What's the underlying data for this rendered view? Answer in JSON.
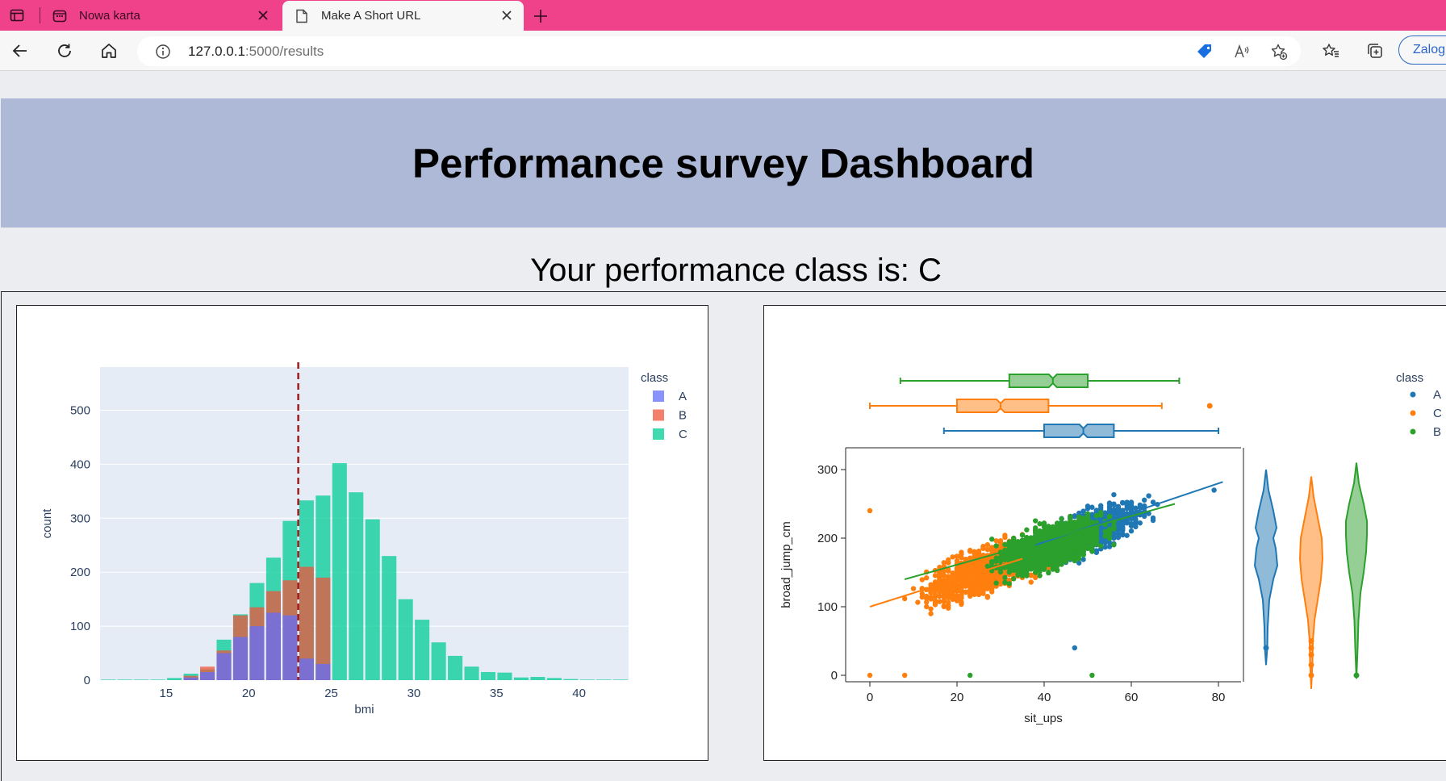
{
  "browser": {
    "tabs": [
      {
        "label": "Nowa karta"
      },
      {
        "label": "Make A Short URL"
      }
    ],
    "url_host": "127.0.0.1",
    "url_path": ":5000/results",
    "login_label": "Zalogu"
  },
  "page": {
    "title": "Performance survey Dashboard",
    "result_text": "Your performance class is: C"
  },
  "colors": {
    "tabstrip": "#f0428a",
    "banner": "#adb9d6",
    "histA": "#636efa",
    "histB": "#ef553b",
    "histC": "#00cc96",
    "scatterA": "#1f77b4",
    "scatterC": "#ff7f0e",
    "scatterB": "#2ca02c"
  },
  "chart_data": [
    {
      "type": "bar",
      "xlabel": "bmi",
      "ylabel": "count",
      "xlim": [
        11,
        43
      ],
      "ylim": [
        0,
        580
      ],
      "xticks": [
        15,
        20,
        25,
        30,
        35,
        40
      ],
      "yticks": [
        0,
        100,
        200,
        300,
        400,
        500
      ],
      "bin_width": 1,
      "legend_title": "class",
      "legend_position": "top-right",
      "reference_line_x": 23,
      "bins_left": [
        11,
        12,
        13,
        14,
        15,
        16,
        17,
        18,
        19,
        20,
        21,
        22,
        23,
        24,
        25,
        26,
        27,
        28,
        29,
        30,
        31,
        32,
        33,
        34,
        35,
        36,
        37,
        38,
        39,
        40,
        41,
        42
      ],
      "series": [
        {
          "name": "A",
          "values": [
            0,
            0,
            0,
            0,
            0,
            5,
            15,
            50,
            80,
            100,
            125,
            120,
            40,
            30,
            0,
            0,
            0,
            0,
            0,
            0,
            0,
            0,
            0,
            0,
            0,
            0,
            0,
            0,
            0,
            0,
            0,
            0
          ]
        },
        {
          "name": "B",
          "values": [
            0,
            0,
            0,
            0,
            0,
            8,
            25,
            55,
            120,
            135,
            165,
            185,
            210,
            190,
            0,
            0,
            0,
            0,
            0,
            0,
            0,
            0,
            0,
            0,
            0,
            0,
            0,
            0,
            0,
            0,
            0,
            0
          ]
        },
        {
          "name": "C",
          "values": [
            1,
            1,
            1,
            1,
            4,
            12,
            20,
            75,
            122,
            180,
            227,
            295,
            333,
            342,
            402,
            348,
            298,
            230,
            150,
            112,
            70,
            45,
            25,
            15,
            14,
            5,
            6,
            4,
            2,
            1,
            1,
            1
          ]
        }
      ]
    },
    {
      "type": "scatter",
      "xlabel": "sit_ups",
      "ylabel": "broad_jump_cm",
      "xlim": [
        -5,
        85
      ],
      "ylim": [
        -35,
        335
      ],
      "xticks": [
        0,
        20,
        40,
        60,
        80
      ],
      "yticks": [
        0,
        100,
        200,
        300
      ],
      "legend_title": "class",
      "legend_position": "top-right",
      "series": [
        {
          "name": "A",
          "trend": [
            [
              38,
              190
            ],
            [
              81,
              282
            ]
          ],
          "box": {
            "min": 17,
            "q1": 40,
            "median": 49,
            "q3": 56,
            "max": 80,
            "outliers": []
          }
        },
        {
          "name": "C",
          "trend": [
            [
              0,
              100
            ],
            [
              35,
              170
            ]
          ],
          "box": {
            "min": 0,
            "q1": 20,
            "median": 30,
            "q3": 41,
            "max": 67,
            "outliers": [
              78
            ]
          }
        },
        {
          "name": "B",
          "trend": [
            [
              8,
              140
            ],
            [
              70,
              250
            ]
          ],
          "box": {
            "min": 7,
            "q1": 32,
            "median": 42,
            "q3": 50,
            "max": 71,
            "outliers": []
          }
        }
      ]
    }
  ]
}
